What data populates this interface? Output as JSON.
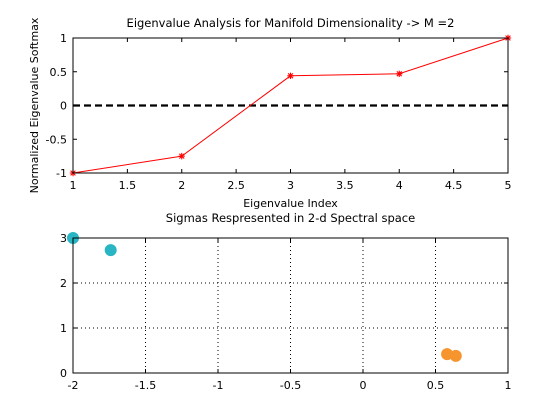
{
  "chart_data": [
    {
      "type": "line",
      "title": "Eigenvalue Analysis for Manifold Dimensionality -> M =2",
      "xlabel": "Eigenvalue Index",
      "ylabel": "Normalized Eigenvalue Softmax",
      "xlim": [
        1,
        5
      ],
      "ylim": [
        -1,
        1
      ],
      "xticks": [
        "1",
        "1.5",
        "2",
        "2.5",
        "3",
        "3.5",
        "4",
        "4.5",
        "5"
      ],
      "yticks": [
        "-1",
        "-0.5",
        "0",
        "0.5",
        "1"
      ],
      "grid": false,
      "series": [
        {
          "x": [
            1,
            2,
            3,
            4,
            5
          ],
          "y": [
            -1.0,
            -0.75,
            0.44,
            0.47,
            1.0
          ],
          "color": "#ff0000",
          "marker": "asterisk"
        }
      ],
      "reference_line": {
        "y": 0,
        "style": "dashed",
        "color": "#000000"
      }
    },
    {
      "type": "scatter",
      "title": "Sigmas Respresented in 2-d Spectral space",
      "xlim": [
        -2,
        1
      ],
      "ylim": [
        0,
        3
      ],
      "xticks": [
        "-2",
        "-1.5",
        "-1",
        "-0.5",
        "0",
        "0.5",
        "1"
      ],
      "yticks": [
        "0",
        "1",
        "2",
        "3"
      ],
      "grid": true,
      "series": [
        {
          "x": [
            -2.0,
            -1.74
          ],
          "y": [
            3.0,
            2.73
          ],
          "color": "#2ab5c4"
        },
        {
          "x": [
            0.58,
            0.64
          ],
          "y": [
            0.42,
            0.38
          ],
          "color": "#f6942e"
        }
      ]
    }
  ]
}
